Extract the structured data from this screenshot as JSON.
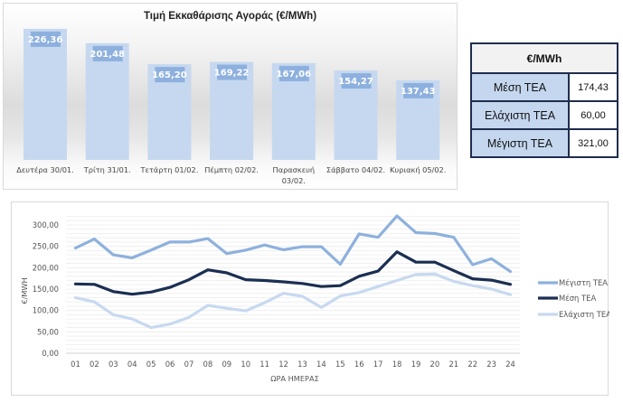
{
  "chart_data": [
    {
      "type": "bar",
      "title": "Τιμή Εκκαθάρισης Αγοράς (€/MWh)",
      "categories": [
        "Δευτέρα 30/01.",
        "Τρίτη 31/01.",
        "Τετάρτη 01/02.",
        "Πέμπτη 02/02.",
        "Παρασκευή 03/02.",
        "Σάββατο 04/02.",
        "Κυριακή 05/02."
      ],
      "values": [
        226.36,
        201.48,
        165.2,
        169.22,
        167.06,
        154.27,
        137.43
      ],
      "data_labels": [
        "226,36",
        "201,48",
        "165,20",
        "169,22",
        "167,06",
        "154,27",
        "137,43"
      ],
      "xlabel": "",
      "ylabel": "",
      "grid": false,
      "colors": {
        "bar": "#c5d8f0",
        "label_bg": "#8db0de",
        "label_text": "#ffffff"
      }
    },
    {
      "type": "line",
      "title": "",
      "xlabel": "ΩΡΑ ΗΜΕΡΑΣ",
      "ylabel": "€/MWH",
      "x": [
        "01",
        "02",
        "03",
        "04",
        "05",
        "06",
        "07",
        "08",
        "09",
        "10",
        "11",
        "12",
        "13",
        "14",
        "15",
        "16",
        "17",
        "18",
        "19",
        "20",
        "21",
        "22",
        "23",
        "24"
      ],
      "ylim": [
        0,
        300
      ],
      "yticks": [
        0,
        50,
        100,
        150,
        200,
        250,
        300
      ],
      "ytick_labels": [
        "0,00",
        "50,00",
        "100,00",
        "150,00",
        "200,00",
        "250,00",
        "300,00"
      ],
      "grid": true,
      "legend_position": "right",
      "series": [
        {
          "name": "Μέγιστη ΤΕΑ",
          "color": "#8eb1dd",
          "values": [
            246,
            267,
            230,
            223,
            241,
            260,
            260,
            268,
            233,
            241,
            253,
            242,
            249,
            249,
            208,
            279,
            271,
            321,
            282,
            280,
            271,
            207,
            221,
            191
          ]
        },
        {
          "name": "Μέση ΤΕΑ",
          "color": "#1b2f52",
          "values": [
            162,
            161,
            144,
            138,
            143,
            154,
            172,
            195,
            188,
            172,
            170,
            167,
            163,
            156,
            158,
            180,
            192,
            237,
            213,
            213,
            193,
            174,
            171,
            161
          ]
        },
        {
          "name": "Ελάχιστη ΤΕΑ",
          "color": "#c7d9f0",
          "values": [
            130,
            120,
            90,
            80,
            60,
            68,
            84,
            112,
            105,
            99,
            118,
            140,
            133,
            107,
            134,
            142,
            156,
            170,
            184,
            185,
            168,
            158,
            150,
            137
          ]
        }
      ]
    }
  ],
  "summary_table": {
    "header": "€/MWh",
    "rows": [
      {
        "label": "Μέση ΤΕΑ",
        "value": "174,43"
      },
      {
        "label": "Ελάχιστη ΤΕΑ",
        "value": "60,00"
      },
      {
        "label": "Μέγιστη ΤΕΑ",
        "value": "321,00"
      }
    ]
  }
}
